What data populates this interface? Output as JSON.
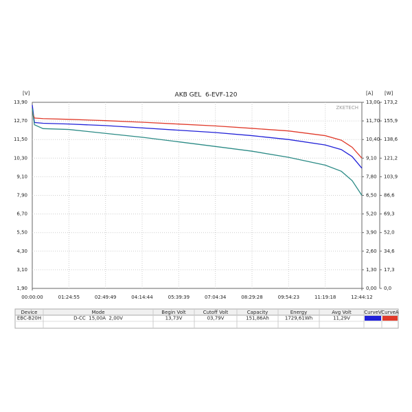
{
  "chart_data": {
    "type": "line",
    "title": "AKB GEL  6-EVF-120",
    "watermark": "ZKETECH",
    "y_label": "[V]",
    "y2_label": "[A]",
    "y3_label": "[W]",
    "x": [
      0,
      300,
      1500,
      5095,
      10189,
      15284,
      20379,
      25474,
      30568,
      35663,
      40758,
      43000,
      44500,
      45852
    ],
    "xlim": [
      0,
      45852
    ],
    "xticks": [
      {
        "value": 0,
        "label": "00:00:00"
      },
      {
        "value": 5095,
        "label": "01:24:55"
      },
      {
        "value": 10189,
        "label": "02:49:49"
      },
      {
        "value": 15284,
        "label": "04:14:44"
      },
      {
        "value": 20379,
        "label": "05:39:39"
      },
      {
        "value": 25474,
        "label": "07:04:34"
      },
      {
        "value": 30568,
        "label": "08:29:28"
      },
      {
        "value": 35663,
        "label": "09:54:23"
      },
      {
        "value": 40758,
        "label": "11:19:18"
      },
      {
        "value": 45852,
        "label": "12:44:12"
      }
    ],
    "ylim": [
      1.9,
      13.9
    ],
    "yticks": [
      {
        "value": 1.9,
        "label": "1,90"
      },
      {
        "value": 3.1,
        "label": "3,10"
      },
      {
        "value": 4.3,
        "label": "4,30"
      },
      {
        "value": 5.5,
        "label": "5,50"
      },
      {
        "value": 6.7,
        "label": "6,70"
      },
      {
        "value": 7.9,
        "label": "7,90"
      },
      {
        "value": 9.1,
        "label": "9,10"
      },
      {
        "value": 10.3,
        "label": "10,30"
      },
      {
        "value": 11.5,
        "label": "11,50"
      },
      {
        "value": 12.7,
        "label": "12,70"
      },
      {
        "value": 13.9,
        "label": "13,90"
      }
    ],
    "y2lim": [
      0,
      13
    ],
    "y2ticks": [
      {
        "value": 0,
        "label": "0,00"
      },
      {
        "value": 1.3,
        "label": "1,30"
      },
      {
        "value": 2.6,
        "label": "2,60"
      },
      {
        "value": 3.9,
        "label": "3,90"
      },
      {
        "value": 5.2,
        "label": "5,20"
      },
      {
        "value": 6.5,
        "label": "6,50"
      },
      {
        "value": 7.8,
        "label": "7,80"
      },
      {
        "value": 9.1,
        "label": "9,10"
      },
      {
        "value": 10.4,
        "label": "10,40"
      },
      {
        "value": 11.7,
        "label": "11,70"
      },
      {
        "value": 13,
        "label": "13,00"
      }
    ],
    "y3lim": [
      0,
      173.2
    ],
    "y3ticks": [
      {
        "value": 0,
        "label": "0,0"
      },
      {
        "value": 17.32,
        "label": "17,3"
      },
      {
        "value": 34.64,
        "label": "34,6"
      },
      {
        "value": 51.96,
        "label": "52,0"
      },
      {
        "value": 69.28,
        "label": "69,3"
      },
      {
        "value": 86.6,
        "label": "86,6"
      },
      {
        "value": 103.92,
        "label": "103,9"
      },
      {
        "value": 121.24,
        "label": "121,2"
      },
      {
        "value": 138.56,
        "label": "138,6"
      },
      {
        "value": 155.88,
        "label": "155,9"
      },
      {
        "value": 173.2,
        "label": "173,2"
      }
    ],
    "grid": true,
    "series": [
      {
        "name": "CurveV",
        "color": "#2020d8",
        "axis": "y",
        "values": [
          13.73,
          12.6,
          12.55,
          12.5,
          12.4,
          12.25,
          12.1,
          11.95,
          11.75,
          11.5,
          11.15,
          10.85,
          10.4,
          9.65
        ]
      },
      {
        "name": "CurveA",
        "color": "#e03a2a",
        "axis": "y2",
        "values": [
          12.35,
          11.9,
          11.86,
          11.81,
          11.72,
          11.61,
          11.48,
          11.35,
          11.18,
          11.0,
          10.67,
          10.35,
          9.86,
          9.1
        ]
      },
      {
        "color": "#2a8a85",
        "axis": "y3",
        "values": [
          167.4,
          152.3,
          148.7,
          147.9,
          144.3,
          140.7,
          136.4,
          132.1,
          127.7,
          122.0,
          114.7,
          109.0,
          100.3,
          86.6
        ]
      }
    ]
  },
  "table": {
    "columns": [
      "Device",
      "Mode",
      "Begin Volt",
      "Cutoff Volt",
      "Capacity",
      "Energy",
      "Avg Volt",
      "CurveV",
      "CurveA"
    ],
    "rows": [
      [
        "EBC-B20H",
        "D-CC  15,00A  2,00V",
        "13,73V",
        "03,79V",
        "151,86Ah",
        "1729,61Wh",
        "11,29V"
      ]
    ]
  }
}
